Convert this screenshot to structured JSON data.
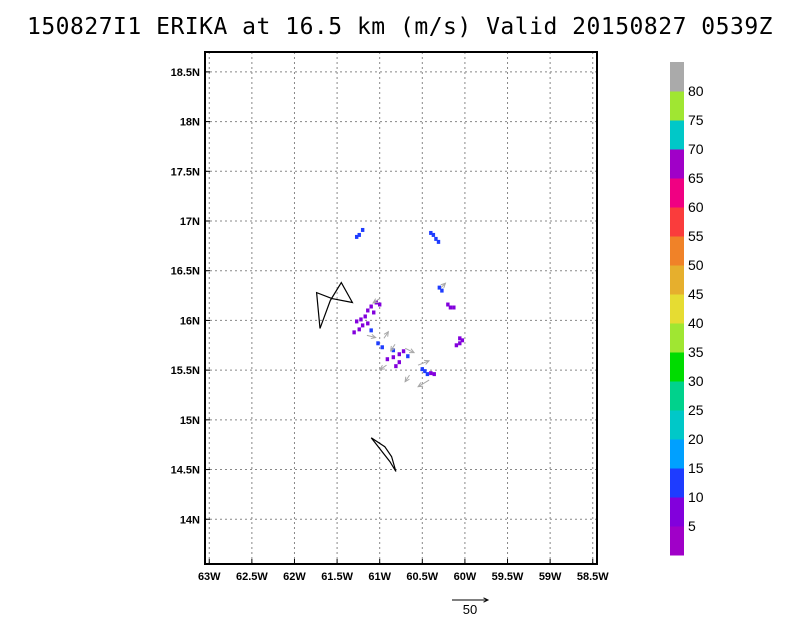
{
  "chart_data": {
    "type": "heatmap",
    "title": "150827I1 ERIKA at 16.5 km (m/s) Valid 20150827 0539Z",
    "x_ticks": [
      {
        "value": -63.0,
        "label": "63W"
      },
      {
        "value": -62.5,
        "label": "62.5W"
      },
      {
        "value": -62.0,
        "label": "62W"
      },
      {
        "value": -61.5,
        "label": "61.5W"
      },
      {
        "value": -61.0,
        "label": "61W"
      },
      {
        "value": -60.5,
        "label": "60.5W"
      },
      {
        "value": -60.0,
        "label": "60W"
      },
      {
        "value": -59.5,
        "label": "59.5W"
      },
      {
        "value": -59.0,
        "label": "59W"
      },
      {
        "value": -58.5,
        "label": "58.5W"
      }
    ],
    "y_ticks": [
      {
        "value": 14.0,
        "label": "14N"
      },
      {
        "value": 14.5,
        "label": "14.5N"
      },
      {
        "value": 15.0,
        "label": "15N"
      },
      {
        "value": 15.5,
        "label": "15.5N"
      },
      {
        "value": 16.0,
        "label": "16N"
      },
      {
        "value": 16.5,
        "label": "16.5N"
      },
      {
        "value": 17.0,
        "label": "17N"
      },
      {
        "value": 17.5,
        "label": "17.5N"
      },
      {
        "value": 18.0,
        "label": "18N"
      },
      {
        "value": 18.5,
        "label": "18.5N"
      }
    ],
    "xlim": [
      -63.05,
      -58.45
    ],
    "ylim": [
      13.55,
      18.7
    ],
    "grid": true,
    "colorbar": {
      "levels": [
        {
          "color": "#a000c8",
          "label": ""
        },
        {
          "color": "#8200dc",
          "label": "5"
        },
        {
          "color": "#1e3cff",
          "label": "10"
        },
        {
          "color": "#00a0ff",
          "label": "15"
        },
        {
          "color": "#00c8c8",
          "label": "20"
        },
        {
          "color": "#00d28c",
          "label": "25"
        },
        {
          "color": "#00dc00",
          "label": "30"
        },
        {
          "color": "#a0e632",
          "label": "35"
        },
        {
          "color": "#e6dc32",
          "label": "40"
        },
        {
          "color": "#e6af2d",
          "label": "45"
        },
        {
          "color": "#f08228",
          "label": "50"
        },
        {
          "color": "#fa3c3c",
          "label": "55"
        },
        {
          "color": "#f00082",
          "label": "60"
        },
        {
          "color": "#a000c8",
          "label": "65"
        },
        {
          "color": "#00c8c8",
          "label": "70"
        },
        {
          "color": "#a0e632",
          "label": "75"
        },
        {
          "color": "#aaaaaa",
          "label": "80"
        }
      ]
    },
    "cells": [
      {
        "lon": -61.24,
        "lat": 16.86,
        "v": 10
      },
      {
        "lon": -61.27,
        "lat": 16.84,
        "v": 10
      },
      {
        "lon": -61.2,
        "lat": 16.91,
        "v": 10
      },
      {
        "lon": -60.37,
        "lat": 16.86,
        "v": 10
      },
      {
        "lon": -60.34,
        "lat": 16.82,
        "v": 10
      },
      {
        "lon": -60.4,
        "lat": 16.88,
        "v": 10
      },
      {
        "lon": -60.31,
        "lat": 16.79,
        "v": 10
      },
      {
        "lon": -60.3,
        "lat": 16.33,
        "v": 10
      },
      {
        "lon": -60.27,
        "lat": 16.3,
        "v": 10
      },
      {
        "lon": -60.17,
        "lat": 16.13,
        "v": 5
      },
      {
        "lon": -60.13,
        "lat": 16.13,
        "v": 5
      },
      {
        "lon": -60.2,
        "lat": 16.16,
        "v": 5
      },
      {
        "lon": -61.04,
        "lat": 16.18,
        "v": 5
      },
      {
        "lon": -61.0,
        "lat": 16.16,
        "v": 5
      },
      {
        "lon": -61.1,
        "lat": 16.14,
        "v": 5
      },
      {
        "lon": -61.14,
        "lat": 16.1,
        "v": 5
      },
      {
        "lon": -61.07,
        "lat": 16.08,
        "v": 5
      },
      {
        "lon": -61.17,
        "lat": 16.04,
        "v": 5
      },
      {
        "lon": -61.22,
        "lat": 16.01,
        "v": 5
      },
      {
        "lon": -61.27,
        "lat": 15.99,
        "v": 5
      },
      {
        "lon": -61.2,
        "lat": 15.95,
        "v": 5
      },
      {
        "lon": -61.14,
        "lat": 15.97,
        "v": 5
      },
      {
        "lon": -61.24,
        "lat": 15.91,
        "v": 5
      },
      {
        "lon": -61.3,
        "lat": 15.88,
        "v": 5
      },
      {
        "lon": -61.1,
        "lat": 15.9,
        "v": 10
      },
      {
        "lon": -61.02,
        "lat": 15.77,
        "v": 10
      },
      {
        "lon": -60.97,
        "lat": 15.73,
        "v": 10
      },
      {
        "lon": -60.06,
        "lat": 15.82,
        "v": 5
      },
      {
        "lon": -60.06,
        "lat": 15.77,
        "v": 5
      },
      {
        "lon": -60.1,
        "lat": 15.75,
        "v": 5
      },
      {
        "lon": -60.03,
        "lat": 15.8,
        "v": 5
      },
      {
        "lon": -60.72,
        "lat": 15.69,
        "v": 5
      },
      {
        "lon": -60.77,
        "lat": 15.66,
        "v": 5
      },
      {
        "lon": -60.84,
        "lat": 15.63,
        "v": 5
      },
      {
        "lon": -60.91,
        "lat": 15.61,
        "v": 5
      },
      {
        "lon": -60.77,
        "lat": 15.58,
        "v": 5
      },
      {
        "lon": -60.81,
        "lat": 15.54,
        "v": 5
      },
      {
        "lon": -60.67,
        "lat": 15.64,
        "v": 10
      },
      {
        "lon": -60.84,
        "lat": 15.7,
        "v": 10
      },
      {
        "lon": -60.47,
        "lat": 15.49,
        "v": 10
      },
      {
        "lon": -60.44,
        "lat": 15.46,
        "v": 10
      },
      {
        "lon": -60.5,
        "lat": 15.51,
        "v": 10
      },
      {
        "lon": -60.4,
        "lat": 15.47,
        "v": 5
      },
      {
        "lon": -60.36,
        "lat": 15.46,
        "v": 5
      }
    ],
    "wind_vectors": [
      {
        "lon": -61.0,
        "lat": 16.22,
        "u": -3,
        "v": -2
      },
      {
        "lon": -61.15,
        "lat": 15.85,
        "u": 4,
        "v": -1
      },
      {
        "lon": -60.95,
        "lat": 15.82,
        "u": 2,
        "v": 3
      },
      {
        "lon": -60.82,
        "lat": 15.76,
        "u": -2,
        "v": -3
      },
      {
        "lon": -60.7,
        "lat": 15.72,
        "u": 4,
        "v": -2
      },
      {
        "lon": -60.92,
        "lat": 15.55,
        "u": -3,
        "v": -2
      },
      {
        "lon": -60.55,
        "lat": 15.55,
        "u": 5,
        "v": 2
      },
      {
        "lon": -60.65,
        "lat": 15.45,
        "u": -2,
        "v": -3
      },
      {
        "lon": -60.42,
        "lat": 15.4,
        "u": -5,
        "v": -3
      },
      {
        "lon": -60.28,
        "lat": 16.33,
        "u": 2,
        "v": 2
      }
    ],
    "wind_reference": {
      "value": 50,
      "label": "50"
    },
    "coastlines": [
      [
        [
          -61.58,
          16.2
        ],
        [
          -61.45,
          16.38
        ],
        [
          -61.32,
          16.18
        ],
        [
          -61.56,
          16.22
        ],
        [
          -61.74,
          16.28
        ],
        [
          -61.7,
          15.92
        ],
        [
          -61.58,
          16.2
        ]
      ],
      [
        [
          -61.1,
          14.82
        ],
        [
          -60.88,
          14.58
        ],
        [
          -60.81,
          14.48
        ],
        [
          -60.86,
          14.63
        ],
        [
          -60.94,
          14.73
        ],
        [
          -61.1,
          14.82
        ]
      ]
    ]
  }
}
